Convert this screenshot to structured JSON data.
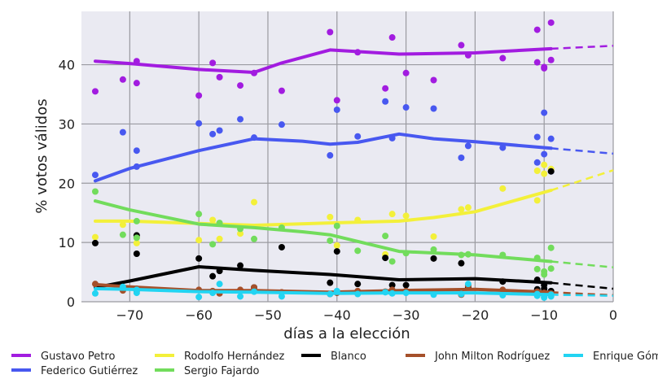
{
  "chart_data": {
    "type": "scatter",
    "xlabel": "días a la elección",
    "ylabel": "% votos válidos",
    "xlim": [
      -77,
      0
    ],
    "ylim": [
      0,
      49
    ],
    "xticks": [
      -70,
      -60,
      -50,
      -40,
      -30,
      -20,
      -10,
      0
    ],
    "yticks": [
      0,
      10,
      20,
      30,
      40
    ],
    "grid": true,
    "legend_position": "bottom",
    "series": [
      {
        "name": "Gustavo Petro",
        "color": "#a21ce0",
        "trend": [
          [
            -75,
            40.6
          ],
          [
            -70,
            40.2
          ],
          [
            -60,
            39.2
          ],
          [
            -52,
            38.7
          ],
          [
            -48,
            40.3
          ],
          [
            -41,
            42.5
          ],
          [
            -31,
            41.8
          ],
          [
            -20,
            42.0
          ],
          [
            -9,
            42.7
          ]
        ],
        "projection": [
          [
            -9,
            42.7
          ],
          [
            0,
            43.2
          ]
        ],
        "points": [
          [
            -75,
            35.5
          ],
          [
            -71,
            37.5
          ],
          [
            -69,
            40.6
          ],
          [
            -69,
            36.9
          ],
          [
            -60,
            34.8
          ],
          [
            -58,
            40.3
          ],
          [
            -57,
            37.9
          ],
          [
            -54,
            36.5
          ],
          [
            -52,
            38.6
          ],
          [
            -48,
            35.6
          ],
          [
            -41,
            45.5
          ],
          [
            -40,
            34.0
          ],
          [
            -37,
            42.1
          ],
          [
            -33,
            36.0
          ],
          [
            -32,
            44.6
          ],
          [
            -30,
            38.6
          ],
          [
            -26,
            37.4
          ],
          [
            -22,
            43.3
          ],
          [
            -21,
            41.6
          ],
          [
            -16,
            41.1
          ],
          [
            -11,
            45.9
          ],
          [
            -11,
            40.4
          ],
          [
            -10,
            39.6
          ],
          [
            -10,
            39.4
          ],
          [
            -9,
            47.1
          ],
          [
            -9,
            40.8
          ]
        ]
      },
      {
        "name": "Federico Gutiérrez",
        "color": "#4858f0",
        "trend": [
          [
            -75,
            20.4
          ],
          [
            -70,
            22.5
          ],
          [
            -60,
            25.5
          ],
          [
            -52,
            27.5
          ],
          [
            -45,
            27.1
          ],
          [
            -41,
            26.6
          ],
          [
            -37,
            26.9
          ],
          [
            -31,
            28.3
          ],
          [
            -26,
            27.5
          ],
          [
            -20,
            27.0
          ],
          [
            -9,
            25.9
          ]
        ],
        "projection": [
          [
            -9,
            25.9
          ],
          [
            0,
            25.0
          ]
        ],
        "points": [
          [
            -75,
            21.4
          ],
          [
            -71,
            28.6
          ],
          [
            -69,
            25.5
          ],
          [
            -69,
            22.8
          ],
          [
            -60,
            30.1
          ],
          [
            -58,
            28.3
          ],
          [
            -57,
            28.9
          ],
          [
            -54,
            30.8
          ],
          [
            -52,
            27.7
          ],
          [
            -48,
            29.9
          ],
          [
            -41,
            24.7
          ],
          [
            -40,
            32.4
          ],
          [
            -37,
            27.9
          ],
          [
            -33,
            33.8
          ],
          [
            -32,
            27.6
          ],
          [
            -30,
            32.8
          ],
          [
            -26,
            32.6
          ],
          [
            -22,
            24.3
          ],
          [
            -21,
            26.3
          ],
          [
            -16,
            26.0
          ],
          [
            -11,
            27.8
          ],
          [
            -11,
            23.5
          ],
          [
            -10,
            31.9
          ],
          [
            -10,
            24.9
          ],
          [
            -9,
            27.5
          ],
          [
            -9,
            22.0
          ]
        ]
      },
      {
        "name": "Rodolfo Hernández",
        "color": "#f3f03a",
        "trend": [
          [
            -75,
            13.6
          ],
          [
            -70,
            13.6
          ],
          [
            -60,
            13.2
          ],
          [
            -52,
            12.9
          ],
          [
            -41,
            13.3
          ],
          [
            -31,
            13.6
          ],
          [
            -26,
            14.2
          ],
          [
            -20,
            15.2
          ],
          [
            -9,
            18.8
          ]
        ],
        "projection": [
          [
            -9,
            18.8
          ],
          [
            0,
            22.2
          ]
        ],
        "points": [
          [
            -75,
            10.9
          ],
          [
            -71,
            13.0
          ],
          [
            -69,
            10.8
          ],
          [
            -69,
            9.9
          ],
          [
            -60,
            10.4
          ],
          [
            -58,
            13.8
          ],
          [
            -57,
            10.6
          ],
          [
            -54,
            11.5
          ],
          [
            -52,
            16.8
          ],
          [
            -48,
            12.8
          ],
          [
            -41,
            14.3
          ],
          [
            -40,
            9.5
          ],
          [
            -37,
            13.8
          ],
          [
            -33,
            8.0
          ],
          [
            -32,
            14.8
          ],
          [
            -30,
            14.5
          ],
          [
            -26,
            11.0
          ],
          [
            -22,
            15.6
          ],
          [
            -21,
            15.9
          ],
          [
            -16,
            19.1
          ],
          [
            -11,
            22.1
          ],
          [
            -11,
            17.1
          ],
          [
            -10,
            21.6
          ],
          [
            -10,
            23.1
          ],
          [
            -9,
            22.4
          ],
          [
            -9,
            22.1
          ]
        ]
      },
      {
        "name": "Blanco",
        "color": "#000000",
        "trend": [
          [
            -75,
            2.4
          ],
          [
            -70,
            3.5
          ],
          [
            -60,
            5.9
          ],
          [
            -52,
            5.3
          ],
          [
            -41,
            4.6
          ],
          [
            -31,
            3.7
          ],
          [
            -20,
            3.9
          ],
          [
            -9,
            3.2
          ]
        ],
        "projection": [
          [
            -9,
            3.2
          ],
          [
            0,
            2.2
          ]
        ],
        "points": [
          [
            -75,
            9.9
          ],
          [
            -71,
            2.0
          ],
          [
            -69,
            11.2
          ],
          [
            -69,
            8.1
          ],
          [
            -60,
            7.3
          ],
          [
            -58,
            4.3
          ],
          [
            -57,
            5.2
          ],
          [
            -54,
            6.1
          ],
          [
            -52,
            2.4
          ],
          [
            -48,
            9.2
          ],
          [
            -41,
            3.2
          ],
          [
            -40,
            8.5
          ],
          [
            -37,
            3.0
          ],
          [
            -33,
            7.4
          ],
          [
            -32,
            2.8
          ],
          [
            -30,
            2.8
          ],
          [
            -26,
            7.3
          ],
          [
            -22,
            6.5
          ],
          [
            -21,
            2.4
          ],
          [
            -16,
            3.4
          ],
          [
            -11,
            3.7
          ],
          [
            -11,
            2.1
          ],
          [
            -10,
            2.8
          ],
          [
            -10,
            2.2
          ],
          [
            -9,
            22.0
          ],
          [
            -9,
            1.8
          ]
        ]
      },
      {
        "name": "John Milton Rodríguez",
        "color": "#a5502a",
        "trend": [
          [
            -75,
            2.9
          ],
          [
            -70,
            2.5
          ],
          [
            -60,
            1.9
          ],
          [
            -52,
            1.9
          ],
          [
            -41,
            1.6
          ],
          [
            -31,
            1.9
          ],
          [
            -20,
            2.1
          ],
          [
            -9,
            1.6
          ]
        ],
        "projection": [
          [
            -9,
            1.6
          ],
          [
            0,
            1.1
          ]
        ],
        "points": [
          [
            -75,
            3.0
          ],
          [
            -71,
            1.9
          ],
          [
            -69,
            2.2
          ],
          [
            -69,
            1.8
          ],
          [
            -60,
            2.0
          ],
          [
            -58,
            1.8
          ],
          [
            -57,
            1.4
          ],
          [
            -54,
            2.0
          ],
          [
            -52,
            2.4
          ],
          [
            -48,
            1.6
          ],
          [
            -41,
            1.3
          ],
          [
            -40,
            1.5
          ],
          [
            -37,
            1.8
          ],
          [
            -33,
            1.7
          ],
          [
            -32,
            2.0
          ],
          [
            -30,
            1.8
          ],
          [
            -26,
            1.5
          ],
          [
            -22,
            1.2
          ],
          [
            -21,
            2.7
          ],
          [
            -16,
            2.0
          ],
          [
            -11,
            1.7
          ],
          [
            -11,
            1.3
          ],
          [
            -10,
            1.5
          ],
          [
            -10,
            1.1
          ],
          [
            -9,
            1.4
          ],
          [
            -9,
            1.2
          ]
        ]
      },
      {
        "name": "Sergio Fajardo",
        "color": "#72dc5c",
        "trend": [
          [
            -75,
            17.0
          ],
          [
            -70,
            15.5
          ],
          [
            -60,
            13.1
          ],
          [
            -52,
            12.5
          ],
          [
            -45,
            11.8
          ],
          [
            -41,
            11.3
          ],
          [
            -31,
            8.5
          ],
          [
            -20,
            7.9
          ],
          [
            -9,
            6.8
          ]
        ],
        "projection": [
          [
            -9,
            6.8
          ],
          [
            0,
            5.8
          ]
        ],
        "points": [
          [
            -75,
            18.6
          ],
          [
            -71,
            11.3
          ],
          [
            -69,
            13.6
          ],
          [
            -69,
            10.8
          ],
          [
            -60,
            14.8
          ],
          [
            -58,
            9.7
          ],
          [
            -57,
            13.3
          ],
          [
            -54,
            12.3
          ],
          [
            -52,
            10.6
          ],
          [
            -48,
            12.5
          ],
          [
            -41,
            10.3
          ],
          [
            -40,
            12.8
          ],
          [
            -37,
            8.6
          ],
          [
            -33,
            11.1
          ],
          [
            -32,
            6.8
          ],
          [
            -30,
            8.2
          ],
          [
            -26,
            8.8
          ],
          [
            -22,
            7.9
          ],
          [
            -21,
            8.0
          ],
          [
            -16,
            7.9
          ],
          [
            -11,
            7.4
          ],
          [
            -11,
            5.5
          ],
          [
            -10,
            5.1
          ],
          [
            -10,
            4.6
          ],
          [
            -9,
            9.1
          ],
          [
            -9,
            5.6
          ]
        ]
      },
      {
        "name": "Enrique Gómez",
        "color": "#22d4f2",
        "trend": [
          [
            -75,
            2.2
          ],
          [
            -70,
            2.1
          ],
          [
            -60,
            1.7
          ],
          [
            -52,
            1.6
          ],
          [
            -41,
            1.4
          ],
          [
            -31,
            1.5
          ],
          [
            -20,
            1.5
          ],
          [
            -9,
            1.2
          ]
        ],
        "projection": [
          [
            -9,
            1.2
          ],
          [
            0,
            1.0
          ]
        ],
        "points": [
          [
            -75,
            1.4
          ],
          [
            -71,
            2.5
          ],
          [
            -69,
            1.5
          ],
          [
            -69,
            2.0
          ],
          [
            -60,
            0.8
          ],
          [
            -58,
            1.5
          ],
          [
            -57,
            3.0
          ],
          [
            -54,
            0.9
          ],
          [
            -52,
            1.7
          ],
          [
            -48,
            0.9
          ],
          [
            -41,
            1.3
          ],
          [
            -40,
            1.8
          ],
          [
            -37,
            1.3
          ],
          [
            -33,
            1.6
          ],
          [
            -32,
            1.4
          ],
          [
            -30,
            1.5
          ],
          [
            -26,
            1.2
          ],
          [
            -22,
            1.3
          ],
          [
            -21,
            3.0
          ],
          [
            -16,
            1.1
          ],
          [
            -11,
            1.0
          ],
          [
            -11,
            1.3
          ],
          [
            -10,
            0.8
          ],
          [
            -10,
            0.7
          ],
          [
            -9,
            1.2
          ],
          [
            -9,
            0.9
          ]
        ]
      }
    ],
    "legend_order": [
      [
        "Gustavo Petro",
        "Rodolfo Hernández",
        "Blanco",
        "John Milton Rodríguez",
        "Enrique Gómez"
      ],
      [
        "Federico Gutiérrez",
        "Sergio Fajardo"
      ]
    ]
  }
}
